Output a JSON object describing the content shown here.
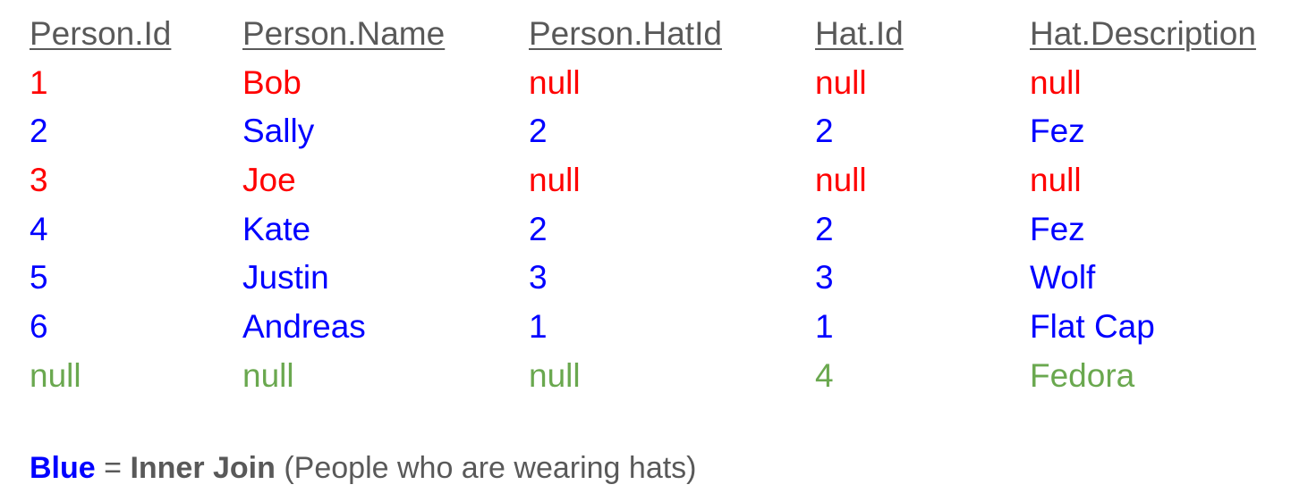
{
  "colors": {
    "header": "#595959",
    "red": "#ff0000",
    "blue": "#0000ff",
    "green": "#6aa84f",
    "legend_text": "#595959"
  },
  "headers": [
    "Person.Id",
    "Person.Name",
    "Person.HatId",
    "Hat.Id",
    "Hat.Description"
  ],
  "rows": [
    {
      "color": "red",
      "cells": [
        "1",
        "Bob",
        "null",
        "null",
        "null"
      ]
    },
    {
      "color": "blue",
      "cells": [
        "2",
        "Sally",
        "2",
        "2",
        "Fez"
      ]
    },
    {
      "color": "red",
      "cells": [
        "3",
        "Joe",
        "null",
        "null",
        "null"
      ]
    },
    {
      "color": "blue",
      "cells": [
        "4",
        "Kate",
        "2",
        "2",
        "Fez"
      ]
    },
    {
      "color": "blue",
      "cells": [
        "5",
        "Justin",
        "3",
        "3",
        "Wolf"
      ]
    },
    {
      "color": "blue",
      "cells": [
        "6",
        "Andreas",
        "1",
        "1",
        "Flat Cap"
      ]
    },
    {
      "color": "green",
      "cells": [
        "null",
        "null",
        "null",
        "4",
        "Fedora"
      ]
    }
  ],
  "legend": {
    "color_word": "Blue",
    "equals": " = ",
    "join_name": "Inner Join",
    "description": " (People who are wearing hats)"
  }
}
